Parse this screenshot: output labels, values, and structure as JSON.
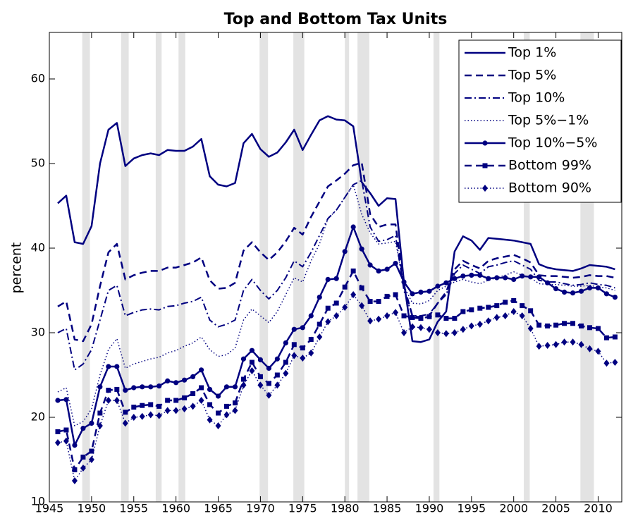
{
  "chart_data": {
    "type": "line",
    "title": "Top and Bottom Tax Units",
    "ylabel": "percent",
    "xlim": [
      1945,
      2012.8
    ],
    "ylim": [
      10,
      65.5
    ],
    "xticks": [
      1945,
      1950,
      1955,
      1960,
      1965,
      1970,
      1975,
      1980,
      1985,
      1990,
      1995,
      2000,
      2005,
      2010
    ],
    "yticks": [
      10,
      20,
      30,
      40,
      50,
      60
    ],
    "grid": false,
    "legend": "top-right",
    "shading_color": "#e3e3e3",
    "shading": [
      [
        1948.9,
        1949.8
      ],
      [
        1953.5,
        1954.4
      ],
      [
        1957.6,
        1958.3
      ],
      [
        1960.3,
        1961.1
      ],
      [
        1969.9,
        1970.9
      ],
      [
        1973.9,
        1975.2
      ],
      [
        1980.0,
        1980.5
      ],
      [
        1981.5,
        1982.9
      ],
      [
        1990.5,
        1991.2
      ],
      [
        2001.2,
        2001.9
      ],
      [
        2007.9,
        2009.5
      ]
    ],
    "x": [
      1946,
      1947,
      1948,
      1949,
      1950,
      1951,
      1952,
      1953,
      1954,
      1955,
      1956,
      1957,
      1958,
      1959,
      1960,
      1961,
      1962,
      1963,
      1964,
      1965,
      1966,
      1967,
      1968,
      1969,
      1970,
      1971,
      1972,
      1973,
      1974,
      1975,
      1976,
      1977,
      1978,
      1979,
      1980,
      1981,
      1982,
      1983,
      1984,
      1985,
      1986,
      1987,
      1988,
      1989,
      1990,
      1991,
      1992,
      1993,
      1994,
      1995,
      1996,
      1997,
      1998,
      1999,
      2000,
      2001,
      2002,
      2003,
      2004,
      2005,
      2006,
      2007,
      2008,
      2009,
      2010,
      2011,
      2012
    ],
    "series": [
      {
        "name": "Top 1%",
        "color": "#000080",
        "dash": "solid",
        "marker": "none",
        "width": 2.5,
        "values": [
          45.3,
          46.2,
          40.7,
          40.5,
          42.6,
          50.0,
          54.0,
          54.8,
          49.7,
          50.6,
          51.0,
          51.2,
          51.0,
          51.6,
          51.5,
          51.5,
          52.0,
          52.9,
          48.5,
          47.5,
          47.3,
          47.7,
          52.4,
          53.5,
          51.7,
          50.8,
          51.3,
          52.5,
          54.0,
          51.6,
          53.4,
          55.1,
          55.6,
          55.2,
          55.1,
          54.4,
          47.8,
          46.5,
          45.0,
          45.9,
          45.8,
          36.0,
          29.0,
          28.9,
          29.2,
          31.3,
          32.5,
          39.6,
          41.4,
          40.9,
          39.8,
          41.2,
          41.1,
          41.0,
          40.9,
          40.7,
          40.5,
          38.1,
          37.7,
          37.5,
          37.4,
          37.3,
          37.6,
          38.0,
          37.9,
          37.8,
          37.5
        ]
      },
      {
        "name": "Top 5%",
        "color": "#000080",
        "dash": "dashed",
        "marker": "none",
        "width": 2.5,
        "values": [
          33.1,
          33.7,
          29.2,
          29.0,
          31.0,
          35.5,
          39.5,
          40.5,
          36.3,
          36.8,
          37.1,
          37.3,
          37.3,
          37.7,
          37.7,
          38.0,
          38.3,
          38.9,
          36.2,
          35.2,
          35.3,
          35.9,
          39.7,
          40.7,
          39.5,
          38.6,
          39.5,
          40.8,
          42.4,
          41.6,
          43.7,
          45.5,
          47.3,
          48.0,
          48.8,
          49.8,
          50.1,
          44.0,
          42.5,
          42.8,
          42.8,
          35.5,
          32.0,
          31.8,
          32.0,
          33.5,
          34.8,
          37.5,
          38.5,
          38.0,
          37.6,
          38.5,
          38.8,
          39.0,
          39.2,
          38.8,
          38.3,
          36.8,
          36.7,
          36.7,
          36.6,
          36.5,
          36.6,
          36.8,
          36.7,
          36.7,
          36.5
        ]
      },
      {
        "name": "Top 10%",
        "color": "#000080",
        "dash": "dashdot",
        "marker": "none",
        "width": 2,
        "values": [
          30.0,
          30.5,
          25.6,
          26.3,
          28.0,
          31.5,
          35.0,
          35.6,
          32.0,
          32.4,
          32.7,
          32.8,
          32.7,
          33.1,
          33.2,
          33.5,
          33.7,
          34.2,
          31.5,
          30.7,
          31.0,
          31.5,
          35.0,
          36.3,
          35.0,
          34.0,
          35.0,
          36.5,
          38.5,
          37.8,
          39.5,
          41.5,
          43.5,
          44.5,
          46.0,
          47.5,
          48.0,
          42.5,
          40.8,
          41.0,
          41.5,
          35.0,
          32.0,
          32.0,
          32.2,
          33.5,
          34.5,
          37.0,
          38.0,
          37.5,
          37.0,
          37.8,
          38.0,
          38.3,
          38.5,
          38.0,
          37.5,
          36.2,
          36.0,
          36.0,
          35.8,
          35.6,
          35.7,
          35.9,
          35.7,
          35.6,
          35.3
        ]
      },
      {
        "name": "Top 5%−1%",
        "color": "#000080",
        "dash": "dotted",
        "marker": "none",
        "width": 1.5,
        "values": [
          23.0,
          23.5,
          19.0,
          19.5,
          21.0,
          25.0,
          28.0,
          29.3,
          25.8,
          26.3,
          26.6,
          26.9,
          27.1,
          27.6,
          27.9,
          28.4,
          28.8,
          29.5,
          28.0,
          27.2,
          27.4,
          28.2,
          31.5,
          32.8,
          32.0,
          31.2,
          32.5,
          34.5,
          36.5,
          36.0,
          38.5,
          40.5,
          43.5,
          44.5,
          46.0,
          47.5,
          44.0,
          41.8,
          40.5,
          40.6,
          40.8,
          35.5,
          33.5,
          33.4,
          33.8,
          35.0,
          35.5,
          36.0,
          36.3,
          36.0,
          35.8,
          36.2,
          36.5,
          36.8,
          37.2,
          36.8,
          36.5,
          35.8,
          35.7,
          35.7,
          35.6,
          35.5,
          35.5,
          35.6,
          35.4,
          35.3,
          35.0
        ]
      },
      {
        "name": "Top 10%−5%",
        "color": "#000080",
        "dash": "solid",
        "marker": "circle",
        "width": 2.5,
        "values": [
          22.0,
          22.1,
          16.7,
          18.7,
          19.3,
          23.6,
          26.0,
          26.0,
          23.2,
          23.5,
          23.6,
          23.6,
          23.7,
          24.3,
          24.1,
          24.4,
          24.8,
          25.6,
          23.3,
          22.5,
          23.6,
          23.6,
          26.9,
          27.9,
          26.8,
          25.8,
          26.9,
          28.8,
          30.4,
          30.6,
          32.0,
          34.2,
          36.3,
          36.4,
          39.6,
          42.5,
          39.9,
          38.0,
          37.3,
          37.5,
          38.2,
          36.0,
          34.6,
          34.8,
          34.9,
          35.5,
          35.9,
          36.4,
          36.7,
          36.8,
          36.8,
          36.4,
          36.5,
          36.5,
          36.3,
          36.7,
          36.6,
          36.6,
          35.9,
          35.2,
          34.8,
          34.7,
          34.9,
          35.3,
          35.3,
          34.6,
          34.2
        ]
      },
      {
        "name": "Bottom 99%",
        "color": "#000080",
        "dash": "dashed",
        "marker": "square",
        "width": 2.5,
        "values": [
          18.3,
          18.5,
          13.8,
          15.3,
          16.0,
          20.5,
          23.2,
          23.3,
          20.6,
          21.2,
          21.4,
          21.5,
          21.3,
          22.0,
          22.0,
          22.3,
          22.8,
          23.5,
          21.5,
          20.5,
          21.3,
          21.7,
          24.5,
          26.5,
          24.8,
          24.0,
          25.0,
          26.5,
          28.6,
          28.2,
          29.2,
          31.0,
          32.9,
          33.5,
          35.4,
          37.3,
          35.3,
          33.7,
          33.7,
          34.3,
          34.5,
          32.0,
          31.8,
          31.7,
          31.9,
          32.1,
          31.7,
          31.7,
          32.5,
          32.7,
          32.9,
          33.0,
          33.2,
          33.6,
          33.8,
          33.2,
          32.6,
          30.9,
          30.8,
          30.9,
          31.1,
          31.1,
          30.8,
          30.6,
          30.5,
          29.4,
          29.5
        ]
      },
      {
        "name": "Bottom 90%",
        "color": "#000080",
        "dash": "dotted",
        "marker": "diamond",
        "width": 1.5,
        "values": [
          17.0,
          17.2,
          12.5,
          14.0,
          15.0,
          19.0,
          22.0,
          22.0,
          19.3,
          20.0,
          20.1,
          20.3,
          20.2,
          20.8,
          20.8,
          21.0,
          21.3,
          22.0,
          19.7,
          19.0,
          20.3,
          20.8,
          23.8,
          25.5,
          23.8,
          22.6,
          23.8,
          25.2,
          27.3,
          27.0,
          27.6,
          29.5,
          31.3,
          32.0,
          33.0,
          34.5,
          33.2,
          31.4,
          31.6,
          32.0,
          32.4,
          30.0,
          30.7,
          30.6,
          30.4,
          30.0,
          29.9,
          30.0,
          30.4,
          30.8,
          31.0,
          31.4,
          31.8,
          32.0,
          32.5,
          32.0,
          30.5,
          28.4,
          28.5,
          28.6,
          28.9,
          28.9,
          28.6,
          28.1,
          27.8,
          26.4,
          26.5
        ]
      }
    ]
  }
}
